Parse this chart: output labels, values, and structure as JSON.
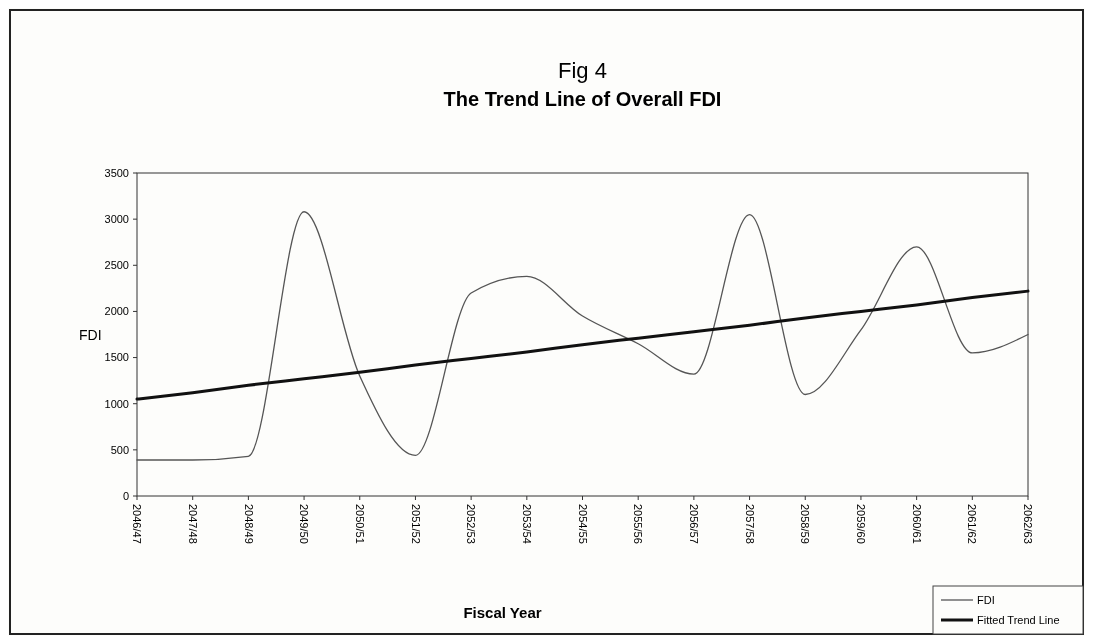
{
  "chart_data": {
    "type": "line",
    "title": "Fig 4",
    "subtitle": "The Trend Line of Overall FDI",
    "xlabel": "Fiscal Year",
    "ylabel": "FDI",
    "categories": [
      "2046/47",
      "2047/48",
      "2048/49",
      "2049/50",
      "2050/51",
      "2051/52",
      "2052/53",
      "2053/54",
      "2054/55",
      "2055/56",
      "2056/57",
      "2057/58",
      "2058/59",
      "2059/60",
      "2060/61",
      "2061/62",
      "2062/63"
    ],
    "series": [
      {
        "name": "FDI",
        "color": "#555555",
        "values": [
          390,
          390,
          430,
          3080,
          1300,
          440,
          2200,
          2380,
          1950,
          1650,
          1320,
          3050,
          1100,
          1800,
          2700,
          1550,
          1750
        ]
      },
      {
        "name": "Fitted Trend Line",
        "color": "#111111",
        "values": [
          1050,
          1120,
          1200,
          1270,
          1340,
          1420,
          1490,
          1560,
          1640,
          1710,
          1780,
          1850,
          1930,
          2000,
          2070,
          2150,
          2220
        ]
      }
    ],
    "ylim": [
      0,
      3500
    ],
    "yticks": [
      0,
      500,
      1000,
      1500,
      2000,
      2500,
      3000,
      3500
    ],
    "grid": false,
    "legend": "bottom right",
    "marker": "none",
    "line_style": "solid"
  }
}
